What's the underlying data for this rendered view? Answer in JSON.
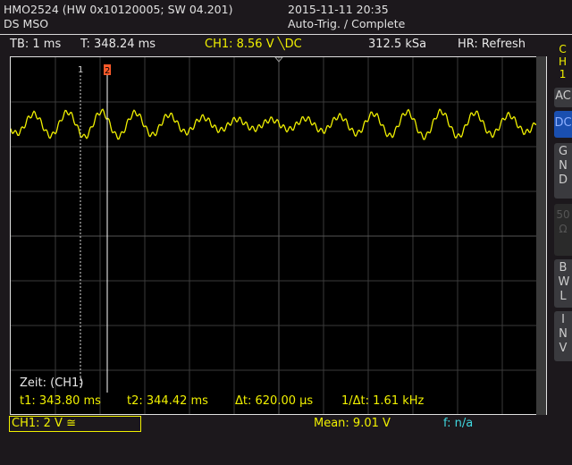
{
  "header": {
    "model": "HMO2524 (HW 0x10120005; SW 04.201)",
    "mode": "DS MSO",
    "datetime": "2015-11-11 20:35",
    "trigger_status": "Auto-Trig. / Complete"
  },
  "status": {
    "timebase": "TB: 1 ms",
    "trigger_time": "T: 348.24 ms",
    "trigger_level": "CH1: 8.56 V ╲DC",
    "sample_rate": "312.5 kSa",
    "acq_mode": "HR: Refresh"
  },
  "side_menu": {
    "channel": [
      "C",
      "H",
      "1"
    ],
    "items": [
      {
        "label": "AC",
        "selected": false
      },
      {
        "label": "DC",
        "selected": true
      },
      {
        "label": "GND",
        "selected": false
      },
      {
        "label": "50Ω",
        "selected": false,
        "disabled": true
      },
      {
        "label": "BWL",
        "selected": false
      },
      {
        "label": "INV",
        "selected": false
      }
    ]
  },
  "cursors": {
    "c1_label": "1",
    "c2_label": "2",
    "title": "Zeit: (CH1)",
    "t1": "t1: 343.80 ms",
    "t2": "t2: 344.42 ms",
    "dt": "Δt: 620.00 µs",
    "inv_dt": "1/Δt: 1.61 kHz"
  },
  "footer": {
    "ch1_scale": "CH1: 2 V ≅",
    "mean": "Mean: 9.01 V",
    "freq": "f: n/a"
  },
  "colors": {
    "ch1": "#f0f000",
    "cursor2": "#ff5a2a",
    "freq": "#40d8e0",
    "dc_selected": "#1a4fb0"
  }
}
